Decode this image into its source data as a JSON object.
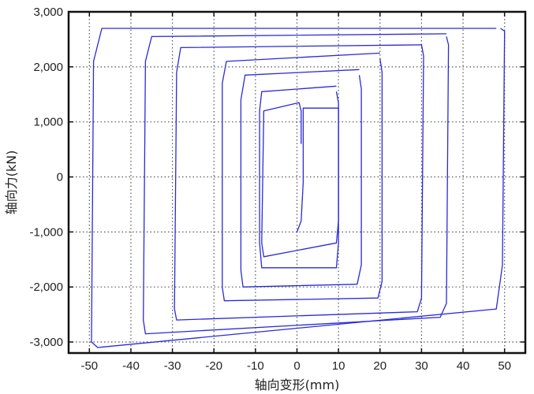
{
  "chart_data": {
    "type": "line",
    "title": "",
    "xlabel": "轴向变形(mm)",
    "ylabel": "轴向力(kN)",
    "xlim": [
      -55,
      55
    ],
    "ylim": [
      -3200,
      3000
    ],
    "x_ticks": [
      -50,
      -40,
      -30,
      -20,
      -10,
      0,
      10,
      20,
      30,
      40,
      50
    ],
    "x_tick_labels": [
      "-50",
      "-40",
      "-30",
      "-20",
      "-10",
      "0",
      "10",
      "20",
      "30",
      "40",
      "50"
    ],
    "y_ticks": [
      -3000,
      -2000,
      -1000,
      0,
      1000,
      2000,
      3000
    ],
    "y_tick_labels": [
      "-3,000",
      "-2,000",
      "-1,000",
      "0",
      "1,000",
      "2,000",
      "3,000"
    ],
    "grid": true,
    "grid_style": "dotted",
    "line_color": "#2a2ad8",
    "series": [
      {
        "x": [
          0,
          1,
          1.5,
          1.5,
          10,
          10,
          9.5,
          -8,
          -8.5,
          -8,
          0.5,
          1,
          1
        ],
        "y": [
          -1000,
          -800,
          -100,
          1250,
          1250,
          -800,
          -1200,
          -1450,
          -1200,
          1200,
          1350,
          1200,
          600
        ]
      },
      {
        "x": [
          9.5,
          10,
          10,
          9.5,
          -8.5,
          -9,
          -9,
          -8.5,
          9.5
        ],
        "y": [
          1550,
          1350,
          -1200,
          -1650,
          -1650,
          -1200,
          1200,
          1550,
          1650
        ]
      },
      {
        "x": [
          15,
          15.5,
          15.5,
          14.5,
          -13,
          -13.5,
          -13.5,
          -12.5,
          15
        ],
        "y": [
          1850,
          1600,
          -1600,
          -1950,
          -2000,
          -1700,
          1400,
          1850,
          1950
        ]
      },
      {
        "x": [
          20,
          20.5,
          20.5,
          19.5,
          -17.5,
          -18,
          -18,
          -17,
          20
        ],
        "y": [
          2150,
          1900,
          -1900,
          -2200,
          -2250,
          -2000,
          1700,
          2100,
          2250
        ]
      },
      {
        "x": [
          30,
          30.5,
          30,
          29,
          -29,
          -29.5,
          -29,
          -28,
          30
        ],
        "y": [
          2400,
          2200,
          -2200,
          -2450,
          -2600,
          -2400,
          1900,
          2350,
          2400
        ]
      },
      {
        "x": [
          36,
          36.5,
          36,
          34.5,
          -36.5,
          -37,
          -36.5,
          -35,
          36
        ],
        "y": [
          2550,
          2400,
          -2300,
          -2550,
          -2850,
          -2600,
          2100,
          2550,
          2600
        ]
      },
      {
        "x": [
          49,
          50,
          49.5,
          48,
          -48,
          -49.5,
          -49,
          -47,
          48
        ],
        "y": [
          2700,
          2650,
          -1600,
          -2400,
          -3100,
          -3000,
          2100,
          2700,
          2700
        ]
      }
    ]
  }
}
